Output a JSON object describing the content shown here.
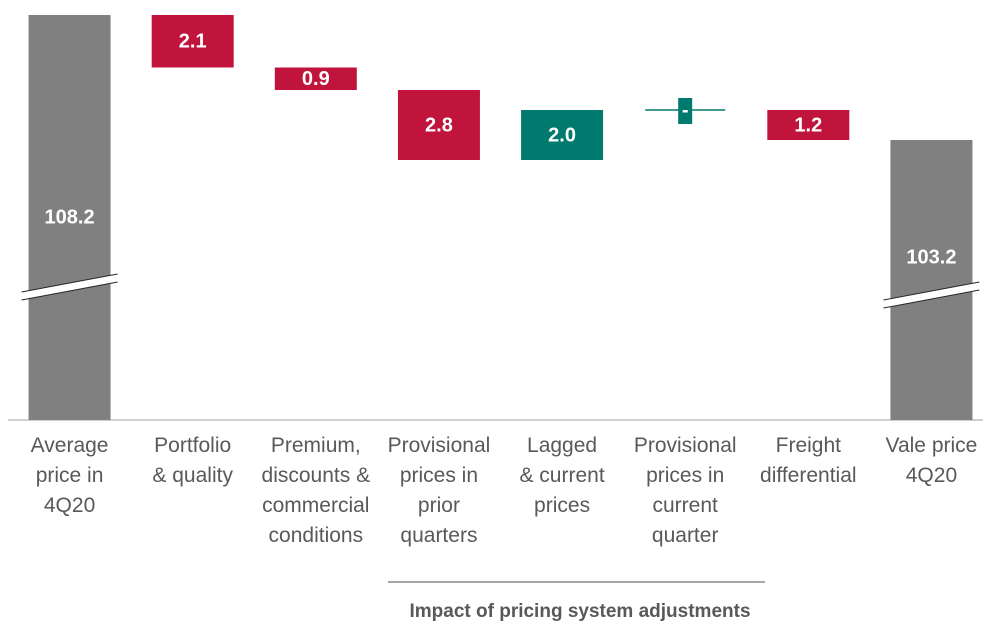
{
  "chart_data": {
    "type": "waterfall",
    "categories": [
      "Average\nprice in\n4Q20",
      "Portfolio\n& quality",
      "Premium,\ndiscounts &\ncommercial\nconditions",
      "Provisional\nprices in\nprior\nquarters",
      "Lagged\n& current\nprices",
      "Provisional\nprices in\ncurrent\nquarter",
      "Freight\ndifferential",
      "Vale price\n4Q20"
    ],
    "measure": [
      "absolute",
      "relative",
      "relative",
      "relative",
      "relative",
      "relative",
      "relative",
      "absolute"
    ],
    "values": [
      108.2,
      -2.1,
      -0.9,
      -2.8,
      2.0,
      0,
      -1.2,
      103.2
    ],
    "value_labels": [
      "108.2",
      "2.1",
      "0.9",
      "2.8",
      "2.0",
      "-",
      "1.2",
      "103.2"
    ],
    "colors": {
      "total": "#808080",
      "decrease": "#c0143c",
      "increase": "#007a6e"
    },
    "ylim": [
      92,
      108.2
    ],
    "axis_break": true,
    "group_annotation": "Impact of pricing system adjustments"
  }
}
